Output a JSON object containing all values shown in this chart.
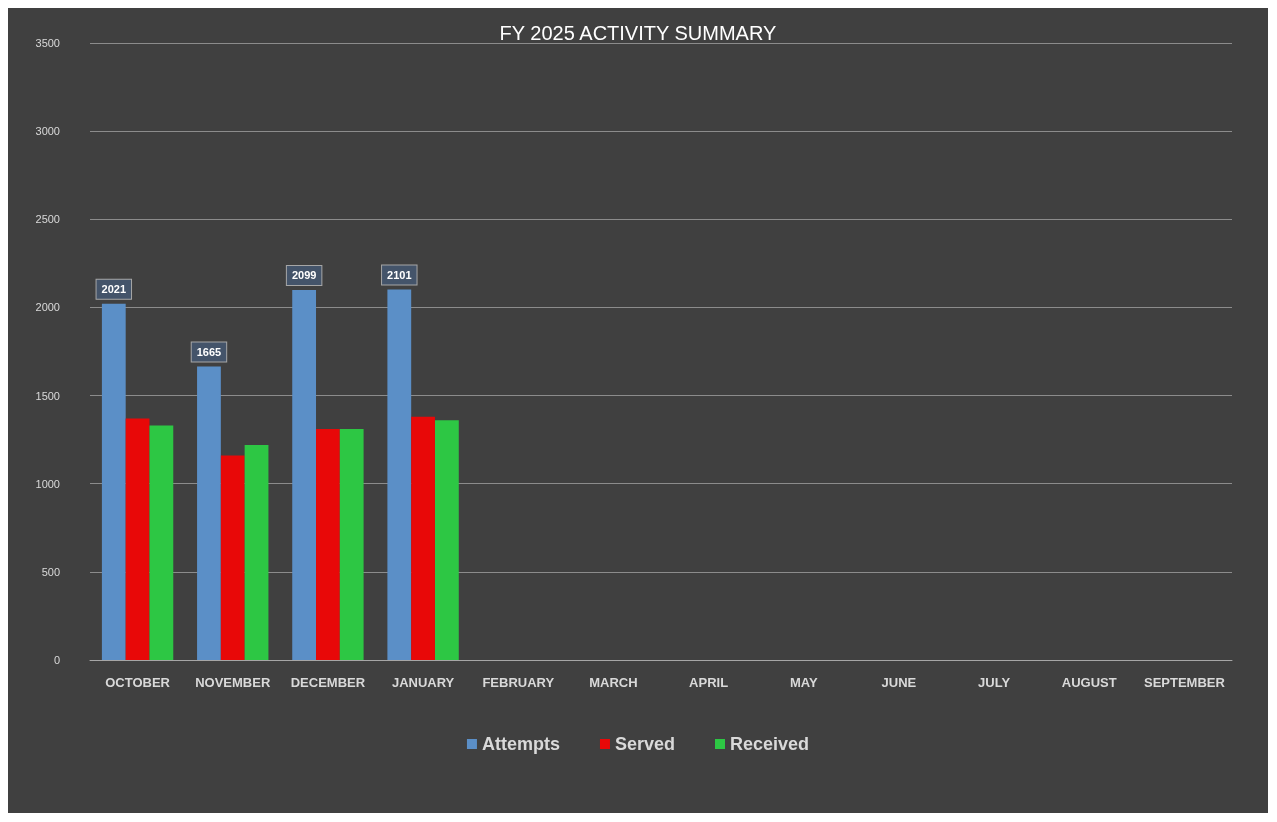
{
  "chart_data": {
    "type": "bar",
    "title": "FY 2025 ACTIVITY SUMMARY",
    "categories": [
      "OCTOBER",
      "NOVEMBER",
      "DECEMBER",
      "JANUARY",
      "FEBRUARY",
      "MARCH",
      "APRIL",
      "MAY",
      "JUNE",
      "JULY",
      "AUGUST",
      "SEPTEMBER"
    ],
    "series": [
      {
        "name": "Attempts",
        "color": "#5b8fc7",
        "values": [
          2021,
          1665,
          2099,
          2101,
          null,
          null,
          null,
          null,
          null,
          null,
          null,
          null
        ],
        "value_labels": [
          "2021",
          "1665",
          "2099",
          "2101",
          null,
          null,
          null,
          null,
          null,
          null,
          null,
          null
        ]
      },
      {
        "name": "Served",
        "color": "#e80808",
        "values": [
          1370,
          1160,
          1310,
          1380,
          null,
          null,
          null,
          null,
          null,
          null,
          null,
          null
        ]
      },
      {
        "name": "Received",
        "color": "#2dc744",
        "values": [
          1330,
          1220,
          1310,
          1360,
          null,
          null,
          null,
          null,
          null,
          null,
          null,
          null
        ]
      }
    ],
    "ylim": [
      0,
      3500
    ],
    "yticks": [
      0,
      500,
      1000,
      1500,
      2000,
      2500,
      3000,
      3500
    ],
    "grid": "y",
    "legend": "bottom"
  }
}
